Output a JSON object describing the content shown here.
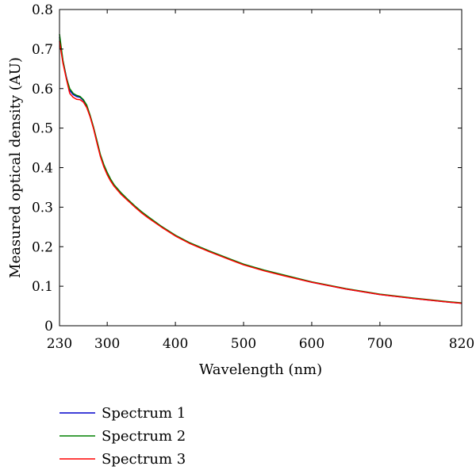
{
  "chart_data": {
    "type": "line",
    "title": "",
    "xlabel": "Wavelength (nm)",
    "ylabel": "Measured optical density (AU)",
    "xlim": [
      230,
      820
    ],
    "ylim": [
      0,
      0.8
    ],
    "xticks": [
      230,
      300,
      400,
      500,
      600,
      700,
      820
    ],
    "yticks": [
      0,
      0.1,
      0.2,
      0.3,
      0.4,
      0.5,
      0.6,
      0.7,
      0.8
    ],
    "ytick_labels": [
      "0",
      "0.1",
      "0.2",
      "0.3",
      "0.4",
      "0.5",
      "0.6",
      "0.7",
      "0.8"
    ],
    "grid": false,
    "legend_position": "bottom-left-outside",
    "series": [
      {
        "name": "Spectrum 1",
        "color": "#0000cc",
        "x": [
          230,
          235,
          240,
          245,
          250,
          255,
          260,
          265,
          270,
          275,
          280,
          285,
          290,
          295,
          300,
          305,
          310,
          320,
          330,
          340,
          350,
          360,
          380,
          400,
          420,
          450,
          480,
          500,
          530,
          560,
          600,
          650,
          700,
          750,
          800,
          820
        ],
        "y": [
          0.73,
          0.67,
          0.63,
          0.595,
          0.585,
          0.58,
          0.578,
          0.57,
          0.555,
          0.53,
          0.5,
          0.465,
          0.43,
          0.405,
          0.385,
          0.368,
          0.355,
          0.335,
          0.318,
          0.302,
          0.287,
          0.274,
          0.25,
          0.228,
          0.21,
          0.188,
          0.168,
          0.155,
          0.14,
          0.127,
          0.11,
          0.093,
          0.079,
          0.069,
          0.06,
          0.057
        ]
      },
      {
        "name": "Spectrum 2",
        "color": "#008000",
        "x": [
          230,
          235,
          240,
          245,
          250,
          255,
          260,
          265,
          270,
          275,
          280,
          285,
          290,
          295,
          300,
          305,
          310,
          320,
          330,
          340,
          350,
          360,
          380,
          400,
          420,
          450,
          480,
          500,
          530,
          560,
          600,
          650,
          700,
          750,
          800,
          820
        ],
        "y": [
          0.738,
          0.672,
          0.628,
          0.6,
          0.588,
          0.583,
          0.58,
          0.572,
          0.558,
          0.532,
          0.502,
          0.468,
          0.433,
          0.408,
          0.388,
          0.371,
          0.357,
          0.337,
          0.32,
          0.304,
          0.289,
          0.276,
          0.251,
          0.229,
          0.211,
          0.189,
          0.169,
          0.156,
          0.141,
          0.128,
          0.111,
          0.094,
          0.08,
          0.07,
          0.061,
          0.058
        ]
      },
      {
        "name": "Spectrum 3",
        "color": "#ff0000",
        "x": [
          230,
          235,
          240,
          245,
          250,
          255,
          260,
          265,
          270,
          275,
          280,
          285,
          290,
          295,
          300,
          305,
          310,
          320,
          330,
          340,
          350,
          360,
          380,
          400,
          420,
          450,
          480,
          500,
          530,
          560,
          600,
          650,
          700,
          750,
          800,
          820
        ],
        "y": [
          0.72,
          0.665,
          0.625,
          0.588,
          0.578,
          0.573,
          0.572,
          0.566,
          0.552,
          0.528,
          0.498,
          0.462,
          0.428,
          0.402,
          0.382,
          0.366,
          0.353,
          0.333,
          0.317,
          0.301,
          0.286,
          0.273,
          0.249,
          0.227,
          0.209,
          0.187,
          0.167,
          0.154,
          0.139,
          0.126,
          0.11,
          0.093,
          0.079,
          0.069,
          0.06,
          0.057
        ]
      }
    ]
  }
}
